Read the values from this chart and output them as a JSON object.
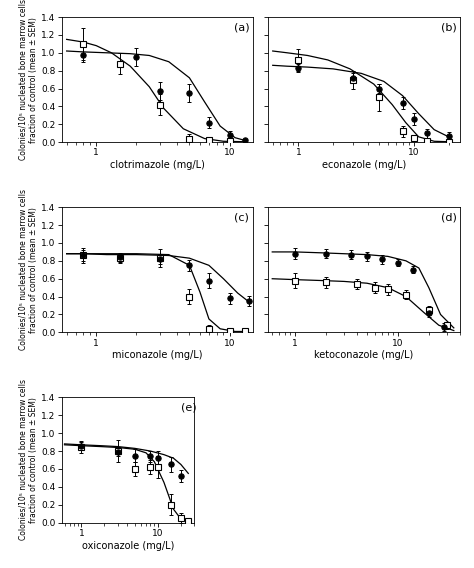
{
  "panels": [
    {
      "label": "(a)",
      "xlabel": "clotrimazole (mg/L)",
      "xlim": [
        0.55,
        15
      ],
      "open_x": [
        0.8,
        1.5,
        3.0,
        5.0,
        7.0,
        10.0
      ],
      "open_y": [
        1.1,
        0.88,
        0.42,
        0.04,
        0.02,
        0.01
      ],
      "open_yerr": [
        0.18,
        0.12,
        0.12,
        0.05,
        0.02,
        0.01
      ],
      "open_fit_x": [
        0.6,
        0.8,
        1.0,
        1.3,
        1.8,
        2.5,
        3.2,
        4.5,
        6.5,
        9.0,
        13.0
      ],
      "open_fit_y": [
        1.15,
        1.12,
        1.08,
        1.0,
        0.85,
        0.62,
        0.38,
        0.15,
        0.04,
        0.01,
        0.005
      ],
      "filled_x": [
        0.8,
        2.0,
        3.0,
        5.0,
        7.0,
        10.0,
        13.0
      ],
      "filled_y": [
        0.98,
        0.95,
        0.57,
        0.55,
        0.22,
        0.08,
        0.02
      ],
      "filled_yerr": [
        0.08,
        0.1,
        0.1,
        0.1,
        0.06,
        0.04,
        0.02
      ],
      "filled_fit_x": [
        0.6,
        0.8,
        1.2,
        1.8,
        2.5,
        3.5,
        5.0,
        6.5,
        8.5,
        11.0,
        13.0
      ],
      "filled_fit_y": [
        1.02,
        1.01,
        1.0,
        0.99,
        0.97,
        0.9,
        0.72,
        0.45,
        0.18,
        0.05,
        0.02
      ]
    },
    {
      "label": "(b)",
      "xlabel": "econazole (mg/L)",
      "xlim": [
        0.55,
        25
      ],
      "open_x": [
        1.0,
        3.0,
        5.0,
        8.0,
        10.0,
        13.0,
        20.0
      ],
      "open_y": [
        0.92,
        0.7,
        0.5,
        0.12,
        0.05,
        0.01,
        0.0
      ],
      "open_yerr": [
        0.12,
        0.1,
        0.15,
        0.06,
        0.03,
        0.01,
        0.005
      ],
      "open_fit_x": [
        0.6,
        0.8,
        1.2,
        1.8,
        2.8,
        4.5,
        6.5,
        8.5,
        11.0,
        15.0,
        20.0
      ],
      "open_fit_y": [
        1.02,
        1.0,
        0.97,
        0.92,
        0.82,
        0.65,
        0.42,
        0.22,
        0.06,
        0.01,
        0.005
      ],
      "filled_x": [
        1.0,
        3.0,
        5.0,
        8.0,
        10.0,
        13.0,
        20.0
      ],
      "filled_y": [
        0.83,
        0.72,
        0.6,
        0.44,
        0.26,
        0.1,
        0.07
      ],
      "filled_yerr": [
        0.05,
        0.05,
        0.05,
        0.07,
        0.07,
        0.05,
        0.04
      ],
      "filled_fit_x": [
        0.6,
        0.8,
        1.2,
        2.0,
        3.5,
        5.5,
        8.0,
        11.0,
        15.0,
        20.0
      ],
      "filled_fit_y": [
        0.86,
        0.85,
        0.84,
        0.82,
        0.77,
        0.68,
        0.52,
        0.32,
        0.14,
        0.06
      ]
    },
    {
      "label": "(c)",
      "xlabel": "miconazole (mg/L)",
      "xlim": [
        0.55,
        15
      ],
      "open_x": [
        0.8,
        1.5,
        3.0,
        5.0,
        7.0,
        10.0,
        13.0
      ],
      "open_y": [
        0.86,
        0.83,
        0.83,
        0.4,
        0.04,
        0.02,
        0.02
      ],
      "open_yerr": [
        0.08,
        0.05,
        0.1,
        0.08,
        0.04,
        0.02,
        0.02
      ],
      "open_fit_x": [
        0.6,
        0.8,
        1.2,
        2.0,
        3.5,
        5.0,
        6.0,
        7.0,
        8.5,
        11.0,
        13.0
      ],
      "open_fit_y": [
        0.88,
        0.88,
        0.88,
        0.88,
        0.87,
        0.75,
        0.45,
        0.15,
        0.04,
        0.01,
        0.01
      ],
      "filled_x": [
        0.8,
        1.5,
        3.0,
        5.0,
        7.0,
        10.0,
        14.0
      ],
      "filled_y": [
        0.86,
        0.84,
        0.82,
        0.75,
        0.58,
        0.38,
        0.35
      ],
      "filled_yerr": [
        0.06,
        0.05,
        0.06,
        0.06,
        0.08,
        0.06,
        0.06
      ],
      "filled_fit_x": [
        0.6,
        0.8,
        1.2,
        2.0,
        3.5,
        5.0,
        7.0,
        9.0,
        11.5,
        14.0
      ],
      "filled_fit_y": [
        0.88,
        0.88,
        0.87,
        0.87,
        0.86,
        0.83,
        0.75,
        0.6,
        0.44,
        0.34
      ]
    },
    {
      "label": "(d)",
      "xlabel": "ketoconazole (mg/L)",
      "xlim": [
        0.55,
        40
      ],
      "open_x": [
        1.0,
        2.0,
        4.0,
        6.0,
        8.0,
        12.0,
        20.0,
        30.0
      ],
      "open_y": [
        0.58,
        0.56,
        0.54,
        0.5,
        0.48,
        0.42,
        0.25,
        0.08
      ],
      "open_yerr": [
        0.08,
        0.06,
        0.06,
        0.06,
        0.06,
        0.05,
        0.05,
        0.04
      ],
      "open_fit_x": [
        0.6,
        1.0,
        1.8,
        3.0,
        5.0,
        8.0,
        12.0,
        18.0,
        25.0,
        35.0
      ],
      "open_fit_y": [
        0.6,
        0.59,
        0.58,
        0.57,
        0.55,
        0.5,
        0.4,
        0.22,
        0.08,
        0.02
      ],
      "filled_x": [
        1.0,
        2.0,
        3.5,
        5.0,
        7.0,
        10.0,
        14.0,
        20.0,
        28.0
      ],
      "filled_y": [
        0.88,
        0.88,
        0.87,
        0.85,
        0.82,
        0.78,
        0.7,
        0.22,
        0.06
      ],
      "filled_yerr": [
        0.06,
        0.05,
        0.05,
        0.05,
        0.05,
        0.04,
        0.04,
        0.05,
        0.04
      ],
      "filled_fit_x": [
        0.6,
        1.0,
        1.8,
        3.0,
        5.0,
        8.0,
        12.0,
        16.0,
        20.0,
        26.0,
        35.0
      ],
      "filled_fit_y": [
        0.9,
        0.9,
        0.89,
        0.88,
        0.87,
        0.85,
        0.8,
        0.72,
        0.5,
        0.2,
        0.05
      ]
    },
    {
      "label": "(e)",
      "xlabel": "oxiconazole (mg/L)",
      "xlim": [
        0.55,
        30
      ],
      "open_x": [
        1.0,
        3.0,
        5.0,
        8.0,
        10.0,
        15.0,
        20.0,
        25.0
      ],
      "open_y": [
        0.84,
        0.8,
        0.6,
        0.62,
        0.62,
        0.2,
        0.05,
        0.02
      ],
      "open_yerr": [
        0.06,
        0.12,
        0.08,
        0.08,
        0.12,
        0.12,
        0.06,
        0.02
      ],
      "open_fit_x": [
        0.6,
        1.0,
        1.8,
        3.0,
        5.0,
        7.0,
        9.0,
        12.0,
        16.0,
        20.0,
        25.0
      ],
      "open_fit_y": [
        0.87,
        0.86,
        0.85,
        0.84,
        0.82,
        0.78,
        0.68,
        0.45,
        0.15,
        0.04,
        0.02
      ],
      "filled_x": [
        1.0,
        3.0,
        5.0,
        8.0,
        10.0,
        15.0,
        20.0
      ],
      "filled_y": [
        0.86,
        0.79,
        0.75,
        0.74,
        0.72,
        0.65,
        0.52
      ],
      "filled_yerr": [
        0.05,
        0.05,
        0.07,
        0.06,
        0.08,
        0.08,
        0.07
      ],
      "filled_fit_x": [
        0.6,
        1.0,
        1.8,
        3.0,
        5.0,
        8.0,
        12.0,
        16.0,
        20.0,
        25.0
      ],
      "filled_fit_y": [
        0.88,
        0.87,
        0.86,
        0.85,
        0.83,
        0.8,
        0.76,
        0.72,
        0.65,
        0.55
      ]
    }
  ],
  "ylabel": "Colonies/10⁵ nucleated bone marrow cells\nfraction of control (mean ± SEM)",
  "ylim": [
    0.0,
    1.4
  ],
  "yticks": [
    0.0,
    0.2,
    0.4,
    0.6,
    0.8,
    1.0,
    1.2,
    1.4
  ]
}
